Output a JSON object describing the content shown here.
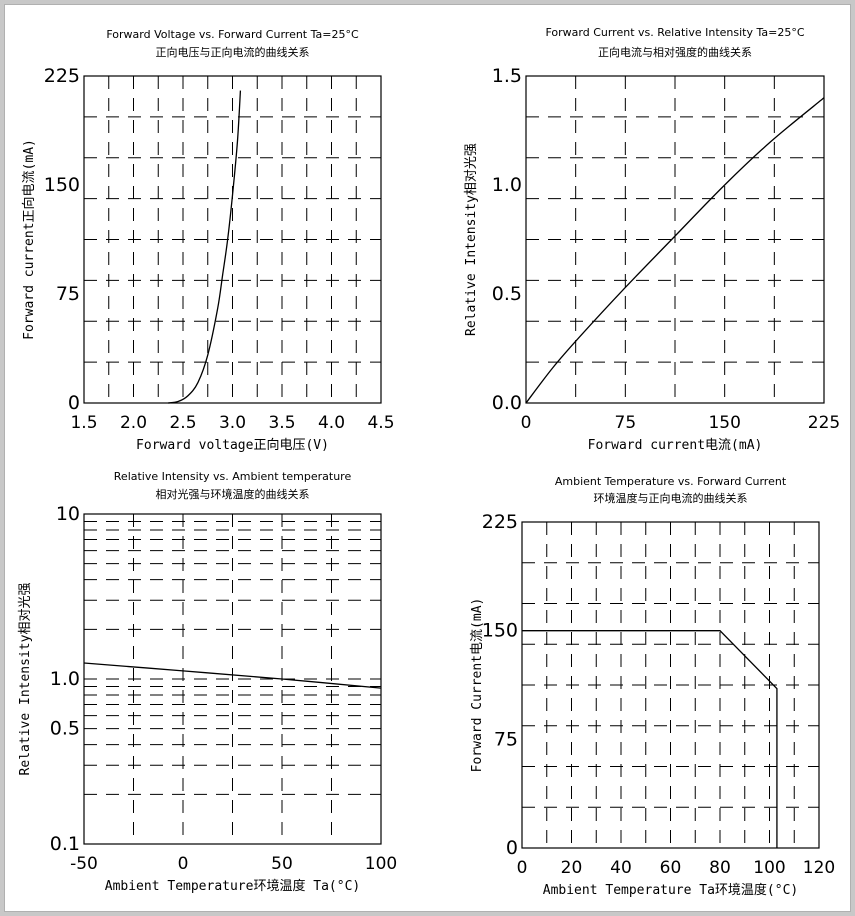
{
  "chart_data": [
    {
      "type": "line",
      "title": "Forward Voltage vs. Forward Current Ta=25°C",
      "subtitle": "正向电压与正向电流的曲线关系",
      "xlabel": "Forward voltage正向电压(V)",
      "ylabel": "Forward current正向电流(mA)",
      "xlim": [
        1.5,
        4.5
      ],
      "ylim": [
        0,
        225
      ],
      "xticks": [
        "1.5",
        "2.0",
        "2.5",
        "3.0",
        "3.5",
        "4.0",
        "4.5"
      ],
      "yticks": [
        "0",
        "75",
        "150",
        "225"
      ],
      "grid": true,
      "series": [
        {
          "x": [
            2.35,
            2.45,
            2.55,
            2.65,
            2.75,
            2.85,
            2.9,
            2.95,
            3.0,
            3.05,
            3.08
          ],
          "y": [
            0,
            1,
            5,
            14,
            33,
            65,
            88,
            112,
            143,
            180,
            215
          ]
        }
      ]
    },
    {
      "type": "line",
      "title": "Forward Current vs. Relative Intensity Ta=25°C",
      "subtitle": "正向电流与相对强度的曲线关系",
      "xlabel": "Forward current电流(mA)",
      "ylabel": "Relative Intensity相对光强",
      "xlim": [
        0,
        225
      ],
      "ylim": [
        0,
        1.5
      ],
      "xticks": [
        "0",
        "75",
        "150",
        "225"
      ],
      "yticks": [
        "0.0",
        "0.5",
        "1.0",
        "1.5"
      ],
      "grid": true,
      "series": [
        {
          "x": [
            0,
            20,
            40,
            75,
            110,
            150,
            185,
            225
          ],
          "y": [
            0,
            0.16,
            0.3,
            0.53,
            0.75,
            1.0,
            1.2,
            1.4
          ]
        }
      ]
    },
    {
      "type": "line",
      "title": "Relative Intensity vs. Ambient temperature",
      "subtitle": "相对光强与环境温度的曲线关系",
      "xlabel": "Ambient Temperature环境温度 Ta(°C)",
      "ylabel": "Relative Intensity相对光强",
      "xlim": [
        -50,
        100
      ],
      "ylim": [
        0.1,
        10
      ],
      "yscale": "log",
      "xticks": [
        "-50",
        "0",
        "50",
        "100"
      ],
      "yticks": [
        "0.1",
        "0.5",
        "1.0",
        "10"
      ],
      "grid": true,
      "series": [
        {
          "x": [
            -50,
            0,
            50,
            100
          ],
          "y": [
            1.25,
            1.12,
            1.0,
            0.88
          ]
        }
      ]
    },
    {
      "type": "line",
      "title": "Ambient Temperature vs. Forward Current",
      "subtitle": "环境温度与正向电流的曲线关系",
      "xlabel": "Ambient Temperature Ta环境温度(°C)",
      "ylabel": "Forward Current电流(mA)",
      "xlim": [
        0,
        120
      ],
      "ylim": [
        0,
        225
      ],
      "xticks": [
        "0",
        "20",
        "40",
        "60",
        "80",
        "100",
        "120"
      ],
      "yticks": [
        "0",
        "75",
        "150",
        "225"
      ],
      "grid": true,
      "series": [
        {
          "x": [
            0,
            80,
            103,
            103
          ],
          "y": [
            150,
            150,
            110,
            0
          ]
        }
      ]
    }
  ],
  "style": {
    "line_color": "#000000",
    "grid_color": "#000000",
    "background": "#ffffff"
  }
}
